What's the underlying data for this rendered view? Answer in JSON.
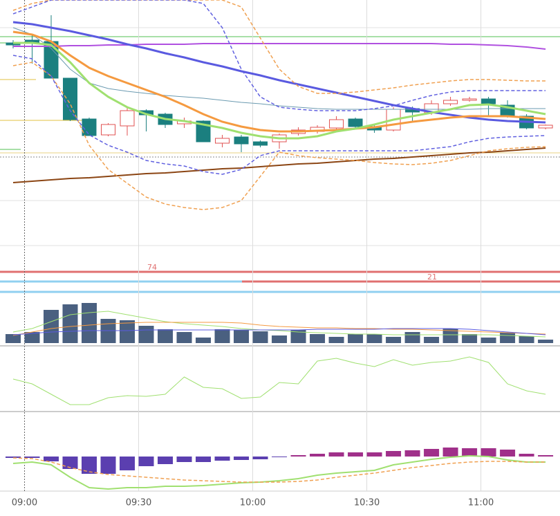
{
  "chart_data": [
    {
      "type": "candlestick",
      "xlim": [
        -0.69,
        28.76
      ],
      "ylim": [
        5,
        400
      ],
      "up_color": "#e05050",
      "down_color": "#1b7f7f",
      "open": [
        338,
        342,
        340,
        287,
        228,
        205,
        218,
        240,
        235,
        221,
        225,
        193,
        202,
        195,
        195,
        207,
        210,
        215,
        228,
        217,
        212,
        243,
        237,
        250,
        255,
        257,
        248,
        232,
        215
      ],
      "high": [
        342,
        350,
        378,
        287,
        230,
        222,
        244,
        242,
        237,
        230,
        226,
        205,
        205,
        197,
        207,
        216,
        219,
        232,
        230,
        220,
        245,
        246,
        255,
        260,
        260,
        260,
        255,
        235,
        220
      ],
      "low": [
        330,
        308,
        287,
        225,
        204,
        203,
        204,
        210,
        215,
        215,
        195,
        187,
        180,
        187,
        185,
        204,
        207,
        213,
        215,
        208,
        210,
        225,
        234,
        247,
        253,
        232,
        230,
        213,
        213
      ],
      "close": [
        335,
        338,
        287,
        227,
        204,
        220,
        240,
        234,
        220,
        225,
        195,
        200,
        192,
        190,
        205,
        212,
        216,
        227,
        217,
        212,
        242,
        238,
        250,
        255,
        257,
        250,
        233,
        215,
        219
      ],
      "lines": [
        {
          "color": "#b050e0",
          "width": 2,
          "values": [
            333,
            333,
            333,
            334,
            334,
            335,
            335,
            336,
            336,
            336,
            337,
            337,
            337,
            337,
            337,
            337,
            337,
            337,
            337,
            337,
            337,
            337,
            337,
            336,
            336,
            335,
            334,
            332,
            329
          ]
        },
        {
          "color": "#6a9ab0",
          "width": 1,
          "values": [
            360,
            350,
            330,
            300,
            280,
            272,
            268,
            265,
            262,
            260,
            258,
            255,
            252,
            250,
            247,
            245,
            243,
            242,
            242,
            242,
            242,
            242,
            242,
            242,
            242,
            243,
            243,
            243,
            243
          ]
        },
        {
          "color": "#5a5ae0",
          "width": 3,
          "values": [
            368,
            365,
            360,
            355,
            349,
            343,
            336,
            330,
            323,
            317,
            310,
            304,
            297,
            291,
            284,
            278,
            272,
            266,
            260,
            254,
            248,
            243,
            238,
            234,
            230,
            227,
            225,
            224,
            223
          ]
        },
        {
          "color": "#f59a40",
          "width": 3,
          "values": [
            354,
            350,
            340,
            320,
            302,
            290,
            280,
            270,
            260,
            248,
            235,
            224,
            217,
            212,
            210,
            210,
            211,
            212,
            214,
            216,
            220,
            224,
            227,
            230,
            232,
            232,
            232,
            230,
            228
          ]
        },
        {
          "color": "#a0e070",
          "width": 3,
          "values": [
            338,
            338,
            335,
            310,
            280,
            260,
            245,
            235,
            228,
            225,
            220,
            215,
            208,
            203,
            200,
            200,
            203,
            210,
            214,
            220,
            227,
            232,
            237,
            242,
            248,
            249,
            245,
            240,
            235
          ]
        },
        {
          "color": "#8b4513",
          "width": 2,
          "values": [
            136,
            138,
            140,
            142,
            143,
            145,
            147,
            149,
            150,
            152,
            154,
            156,
            157,
            159,
            161,
            163,
            164,
            166,
            168,
            170,
            171,
            173,
            175,
            177,
            179,
            180,
            182,
            184,
            186
          ]
        },
        {
          "color": "#f0a050",
          "width": 1.5,
          "dash": true,
          "values": [
            385,
            395,
            400,
            400,
            400,
            400,
            400,
            400,
            400,
            400,
            400,
            400,
            390,
            345,
            300,
            275,
            265,
            265,
            267,
            270,
            273,
            277,
            280,
            283,
            285,
            285,
            284,
            283,
            283
          ]
        },
        {
          "color": "#f0a050",
          "width": 1.5,
          "dash": true,
          "values": [
            305,
            310,
            290,
            250,
            190,
            155,
            135,
            115,
            105,
            100,
            97,
            100,
            110,
            145,
            180,
            175,
            172,
            170,
            168,
            165,
            163,
            162,
            164,
            168,
            175,
            182,
            185,
            187,
            188
          ]
        },
        {
          "color": "#6060e0",
          "width": 1.5,
          "dash": true,
          "values": [
            380,
            390,
            400,
            400,
            400,
            400,
            400,
            400,
            400,
            400,
            395,
            360,
            300,
            260,
            245,
            242,
            240,
            240,
            240,
            243,
            247,
            255,
            262,
            267,
            269,
            269,
            269,
            269,
            269
          ]
        },
        {
          "color": "#6060e0",
          "width": 1.5,
          "dash": true,
          "values": [
            320,
            315,
            290,
            240,
            205,
            190,
            180,
            168,
            163,
            160,
            152,
            148,
            155,
            175,
            182,
            182,
            182,
            182,
            182,
            182,
            182,
            182,
            185,
            188,
            195,
            200,
            202,
            203,
            204
          ]
        }
      ],
      "annotations": [
        "74",
        "21"
      ]
    },
    {
      "type": "bar",
      "xlim": [
        -0.69,
        28.76
      ],
      "ylim": [
        0,
        75
      ],
      "color": "#4a6080",
      "values": [
        13,
        16,
        48,
        56,
        58,
        35,
        33,
        25,
        20,
        16,
        8,
        20,
        19,
        17,
        11,
        19,
        13,
        9,
        13,
        13,
        9,
        16,
        9,
        21,
        13,
        8,
        15,
        10,
        5
      ],
      "lines": [
        {
          "color": "#a0e070",
          "width": 1,
          "values": [
            16,
            21,
            31,
            41,
            44,
            46,
            41,
            36,
            31,
            28,
            26,
            24,
            21,
            19,
            18,
            16,
            15,
            14,
            13,
            13,
            12,
            12,
            12,
            12,
            12,
            12,
            11,
            10,
            9
          ]
        },
        {
          "color": "#f59a40",
          "width": 1,
          "values": [
            11,
            16,
            21,
            24,
            26,
            28,
            29,
            30,
            30,
            30,
            30,
            30,
            29,
            26,
            24,
            23,
            22,
            22,
            21,
            21,
            20,
            20,
            19,
            18,
            17,
            16,
            15,
            14,
            13
          ]
        },
        {
          "color": "#5a5ae0",
          "width": 1,
          "values": [
            12,
            14,
            16,
            17,
            18,
            18,
            18,
            19,
            19,
            19,
            19,
            19,
            19,
            19,
            19,
            19,
            20,
            20,
            20,
            20,
            21,
            21,
            21,
            21,
            20,
            18,
            16,
            14,
            12
          ]
        }
      ]
    },
    {
      "type": "line",
      "xlim": [
        -0.69,
        28.76
      ],
      "ylim": [
        0,
        95
      ],
      "lines": [
        {
          "color": "#a0e070",
          "width": 1,
          "values": [
            47,
            40,
            25,
            10,
            10,
            20,
            23,
            22,
            25,
            50,
            35,
            33,
            19,
            21,
            42,
            40,
            73,
            77,
            70,
            65,
            75,
            67,
            71,
            73,
            79,
            71,
            40,
            30,
            25
          ]
        }
      ]
    },
    {
      "type": "bar",
      "xlim": [
        -0.69,
        28.76
      ],
      "ylim": [
        -50,
        65
      ],
      "color_positive": "#a0308a",
      "color_negative": "#5b3fb0",
      "values": [
        -2,
        -2,
        -7,
        -18,
        -25,
        -25,
        -20,
        -14,
        -11,
        -8,
        -8,
        -6,
        -5,
        -4,
        -1,
        2,
        4,
        6,
        6,
        6,
        8,
        9,
        11,
        13,
        12,
        12,
        10,
        4,
        2
      ],
      "lines": [
        {
          "color": "#a0e070",
          "width": 2,
          "values": [
            -10,
            -8,
            -12,
            -30,
            -45,
            -47,
            -45,
            -45,
            -43,
            -43,
            -42,
            -40,
            -38,
            -37,
            -35,
            -32,
            -27,
            -24,
            -22,
            -20,
            -12,
            -8,
            -4,
            -1,
            1,
            0,
            -5,
            -8,
            -8
          ]
        },
        {
          "color": "#f0a050",
          "width": 1.5,
          "dash": true,
          "values": [
            -2,
            -3,
            -8,
            -16,
            -22,
            -26,
            -28,
            -30,
            -32,
            -34,
            -35,
            -36,
            -37,
            -37,
            -37,
            -36,
            -34,
            -30,
            -27,
            -24,
            -20,
            -16,
            -13,
            -10,
            -8,
            -7,
            -7,
            -8,
            -8
          ]
        }
      ],
      "xticks": [
        {
          "value": 0.6,
          "label": "09:00"
        },
        {
          "value": 6.6,
          "label": "09:30"
        },
        {
          "value": 12.6,
          "label": "10:00"
        },
        {
          "value": 18.6,
          "label": "10:30"
        },
        {
          "value": 24.6,
          "label": "11:00"
        }
      ]
    }
  ]
}
